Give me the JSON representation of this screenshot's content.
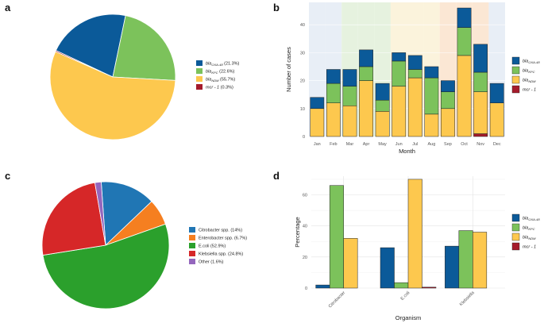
{
  "panels": {
    "a": "a",
    "b": "b",
    "c": "c",
    "d": "d"
  },
  "colors": {
    "oxa48": "#0b5a99",
    "kpc": "#7cc25b",
    "ndm": "#fdc84e",
    "mcr1": "#a51b2b",
    "citrobacter": "#2076b4",
    "enterobacter": "#f57f20",
    "ecoli": "#2ba02c",
    "klebsiella": "#d62728",
    "other": "#9466bd"
  },
  "chart_data": [
    {
      "id": "a",
      "type": "pie",
      "title": "",
      "labels": [
        "blaOXA-48",
        "blaKPC",
        "blaNDM",
        "mcr-1"
      ],
      "values": [
        21.3,
        22.6,
        55.7,
        0.3
      ],
      "legend": [
        {
          "gene": "bla",
          "sub": "OXA-48",
          "pct": "(21.3%)"
        },
        {
          "gene": "bla",
          "sub": "KPC",
          "pct": "(22.6%)"
        },
        {
          "gene": "bla",
          "sub": "NDM",
          "pct": "(55.7%)"
        },
        {
          "gene": "mcr - 1",
          "sub": "",
          "pct": "(0.3%)"
        }
      ]
    },
    {
      "id": "b",
      "type": "bar",
      "stacked": true,
      "categories": [
        "Jan",
        "Feb",
        "Mar",
        "Apr",
        "May",
        "Jun",
        "Jul",
        "Aug",
        "Sep",
        "Oct",
        "Nov",
        "Dec"
      ],
      "series": [
        {
          "name": "mcr-1",
          "values": [
            0,
            0,
            0,
            0,
            0,
            0,
            0,
            0,
            0,
            0,
            1,
            0
          ]
        },
        {
          "name": "blaNDM",
          "values": [
            10,
            12,
            11,
            20,
            9,
            18,
            21,
            8,
            10,
            29,
            15,
            12
          ]
        },
        {
          "name": "blaKPC",
          "values": [
            0,
            7,
            7,
            5,
            4,
            9,
            3,
            13,
            6,
            10,
            7,
            0
          ]
        },
        {
          "name": "blaOXA-48",
          "values": [
            4,
            5,
            6,
            6,
            6,
            3,
            5,
            4,
            4,
            7,
            10,
            7
          ]
        }
      ],
      "xlabel": "Month",
      "ylabel": "Number of cases",
      "ylim": [
        0,
        48
      ],
      "yticks": [
        "0",
        "10",
        "20",
        "30",
        "40"
      ],
      "legend": [
        {
          "gene": "bla",
          "sub": "OXA-48"
        },
        {
          "gene": "bla",
          "sub": "KPC"
        },
        {
          "gene": "bla",
          "sub": "NDM"
        },
        {
          "gene": "mcr - 1",
          "sub": ""
        }
      ]
    },
    {
      "id": "c",
      "type": "pie",
      "labels": [
        "Citrobacter spp.",
        "Enterobacter spp.",
        "E.coli",
        "Klebsiella spp.",
        "Other"
      ],
      "values": [
        14,
        6.7,
        52.9,
        24.8,
        1.6
      ],
      "legend": [
        "Citrobacter spp. (14%)",
        "Enterobacter spp. (6.7%)",
        "E.coli (52.9%)",
        "Klebsiella spp. (24.8%)",
        "Other (1.6%)"
      ]
    },
    {
      "id": "d",
      "type": "bar",
      "categories": [
        "Citrobacter",
        "E.coli",
        "Klebsiella"
      ],
      "series": [
        {
          "name": "blaOXA-48",
          "values": [
            2,
            26,
            27
          ]
        },
        {
          "name": "blaKPC",
          "values": [
            66,
            3.5,
            37
          ]
        },
        {
          "name": "blaNDM",
          "values": [
            32,
            70,
            36
          ]
        },
        {
          "name": "mcr-1",
          "values": [
            0,
            0.6,
            0
          ]
        }
      ],
      "xlabel": "Organism",
      "ylabel": "Percentage",
      "ylim": [
        0,
        72
      ],
      "yticks": [
        "0",
        "20",
        "40",
        "60"
      ],
      "legend": [
        {
          "gene": "bla",
          "sub": "OXA-48"
        },
        {
          "gene": "bla",
          "sub": "KPC"
        },
        {
          "gene": "bla",
          "sub": "NDM"
        },
        {
          "gene": "mcr - 1",
          "sub": ""
        }
      ]
    }
  ]
}
